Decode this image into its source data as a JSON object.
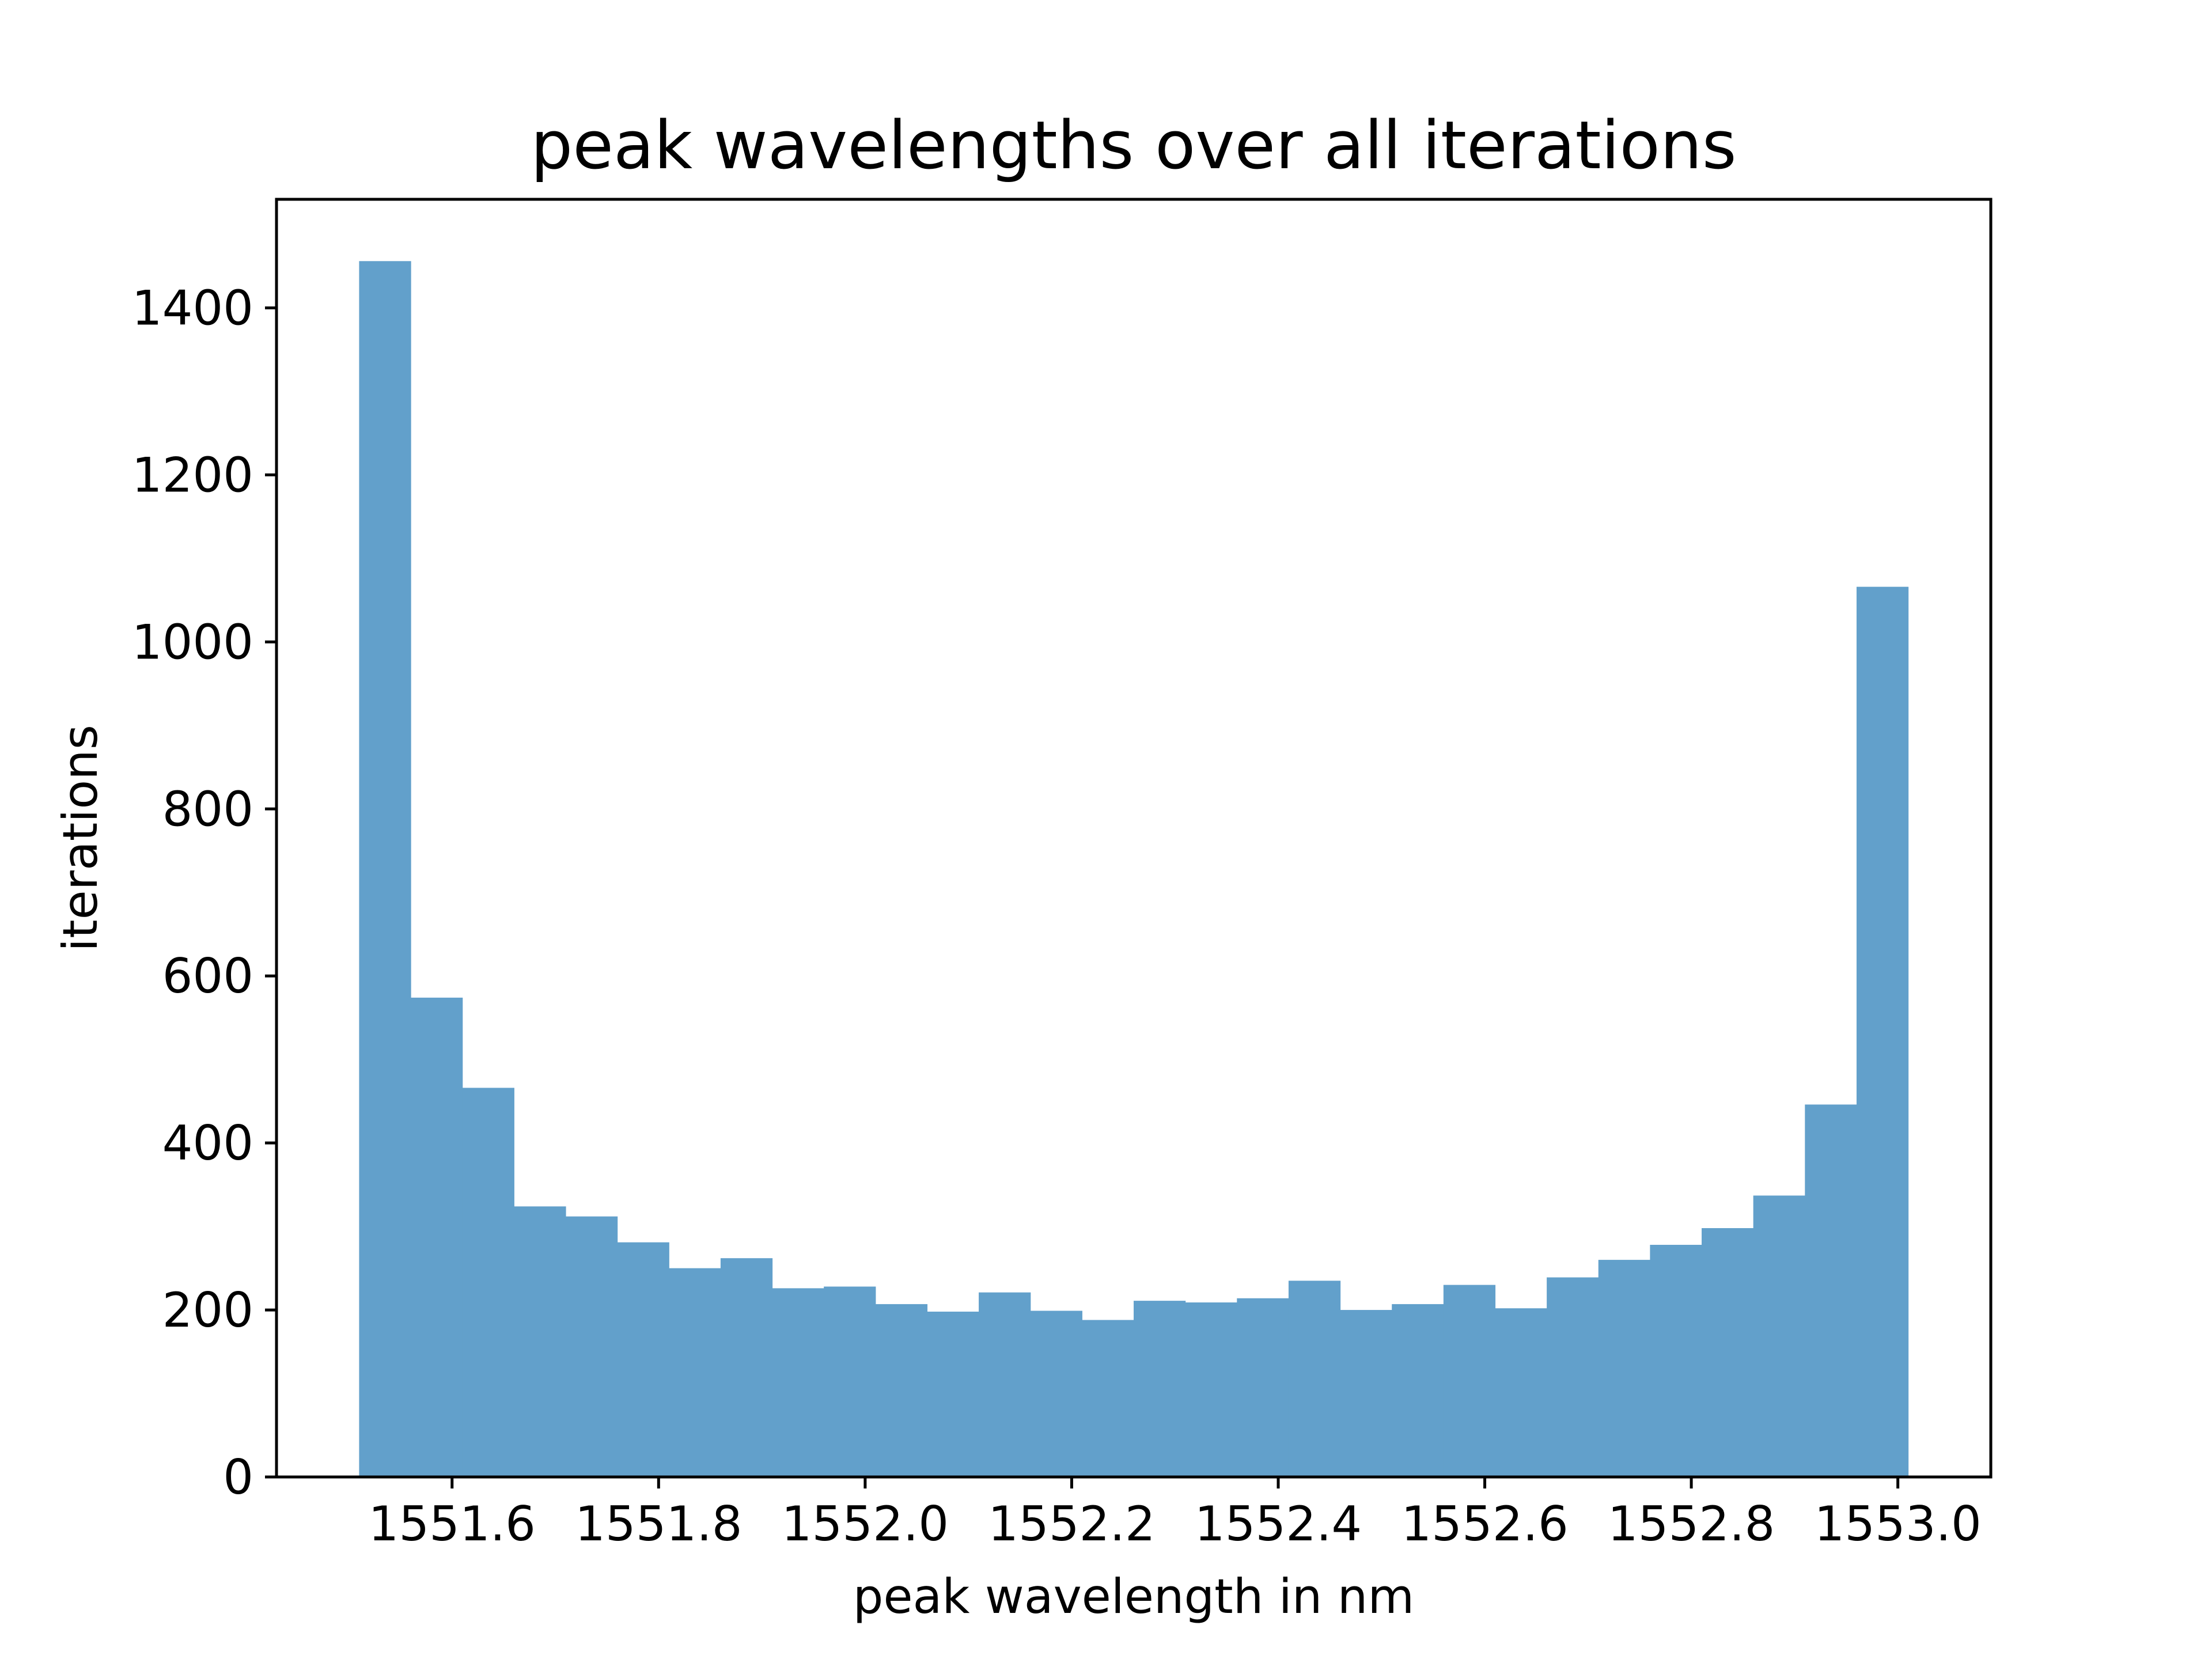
{
  "chart_data": {
    "type": "bar",
    "title": "peak wavelengths over all iterations",
    "xlabel": "peak wavelength in nm",
    "ylabel": "iterations",
    "bar_color": "#62a0cb",
    "x_range": [
      1551.43,
      1553.09
    ],
    "ylim": [
      0,
      1530
    ],
    "x_ticks": [
      1551.6,
      1551.8,
      1552.0,
      1552.2,
      1552.4,
      1552.6,
      1552.8,
      1553.0
    ],
    "x_tick_labels": [
      "1551.6",
      "1551.8",
      "1552.0",
      "1552.2",
      "1552.4",
      "1552.6",
      "1552.8",
      "1553.0"
    ],
    "y_ticks": [
      0,
      200,
      400,
      600,
      800,
      1000,
      1200,
      1400
    ],
    "y_tick_labels": [
      "0",
      "200",
      "400",
      "600",
      "800",
      "1000",
      "1200",
      "1400"
    ],
    "grid": false,
    "bin_start": 1551.51,
    "bin_width": 0.05,
    "values": [
      1456,
      574,
      466,
      324,
      312,
      281,
      250,
      262,
      226,
      228,
      207,
      198,
      221,
      199,
      188,
      211,
      209,
      214,
      235,
      200,
      207,
      230,
      202,
      239,
      260,
      278,
      298,
      337,
      446,
      1066
    ]
  }
}
